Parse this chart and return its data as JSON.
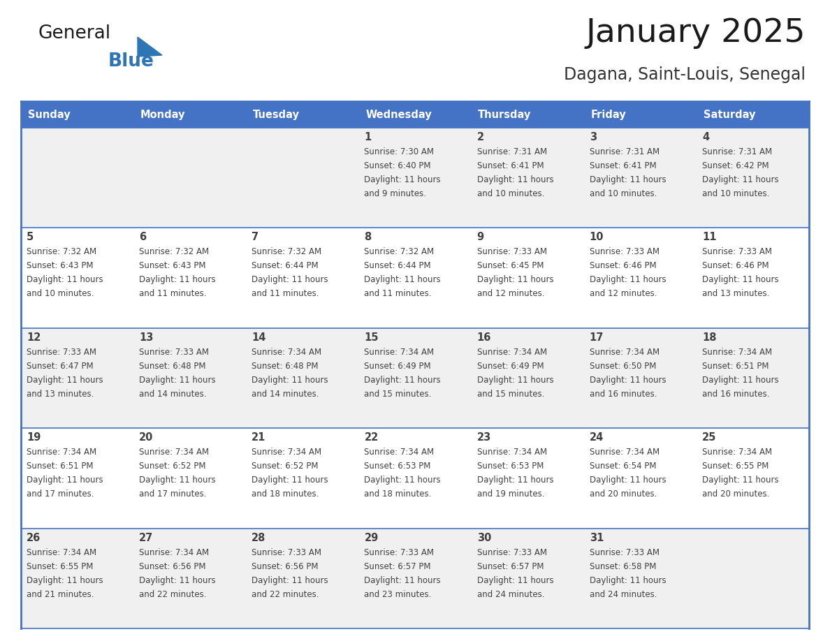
{
  "title": "January 2025",
  "subtitle": "Dagana, Saint-Louis, Senegal",
  "days_of_week": [
    "Sunday",
    "Monday",
    "Tuesday",
    "Wednesday",
    "Thursday",
    "Friday",
    "Saturday"
  ],
  "header_bg": "#4472C4",
  "header_text": "#FFFFFF",
  "cell_bg_odd": "#F0F0F0",
  "cell_bg_even": "#FFFFFF",
  "border_color": "#4472C4",
  "text_color": "#404040",
  "title_color": "#1a1a1a",
  "subtitle_color": "#333333",
  "logo_general_color": "#1a1a1a",
  "logo_blue_color": "#2E75B6",
  "weeks": [
    [
      {
        "day": null,
        "sunrise": null,
        "sunset": null,
        "daylight": null
      },
      {
        "day": null,
        "sunrise": null,
        "sunset": null,
        "daylight": null
      },
      {
        "day": null,
        "sunrise": null,
        "sunset": null,
        "daylight": null
      },
      {
        "day": 1,
        "sunrise": "7:30 AM",
        "sunset": "6:40 PM",
        "daylight": "11 hours and 9 minutes."
      },
      {
        "day": 2,
        "sunrise": "7:31 AM",
        "sunset": "6:41 PM",
        "daylight": "11 hours and 10 minutes."
      },
      {
        "day": 3,
        "sunrise": "7:31 AM",
        "sunset": "6:41 PM",
        "daylight": "11 hours and 10 minutes."
      },
      {
        "day": 4,
        "sunrise": "7:31 AM",
        "sunset": "6:42 PM",
        "daylight": "11 hours and 10 minutes."
      }
    ],
    [
      {
        "day": 5,
        "sunrise": "7:32 AM",
        "sunset": "6:43 PM",
        "daylight": "11 hours and 10 minutes."
      },
      {
        "day": 6,
        "sunrise": "7:32 AM",
        "sunset": "6:43 PM",
        "daylight": "11 hours and 11 minutes."
      },
      {
        "day": 7,
        "sunrise": "7:32 AM",
        "sunset": "6:44 PM",
        "daylight": "11 hours and 11 minutes."
      },
      {
        "day": 8,
        "sunrise": "7:32 AM",
        "sunset": "6:44 PM",
        "daylight": "11 hours and 11 minutes."
      },
      {
        "day": 9,
        "sunrise": "7:33 AM",
        "sunset": "6:45 PM",
        "daylight": "11 hours and 12 minutes."
      },
      {
        "day": 10,
        "sunrise": "7:33 AM",
        "sunset": "6:46 PM",
        "daylight": "11 hours and 12 minutes."
      },
      {
        "day": 11,
        "sunrise": "7:33 AM",
        "sunset": "6:46 PM",
        "daylight": "11 hours and 13 minutes."
      }
    ],
    [
      {
        "day": 12,
        "sunrise": "7:33 AM",
        "sunset": "6:47 PM",
        "daylight": "11 hours and 13 minutes."
      },
      {
        "day": 13,
        "sunrise": "7:33 AM",
        "sunset": "6:48 PM",
        "daylight": "11 hours and 14 minutes."
      },
      {
        "day": 14,
        "sunrise": "7:34 AM",
        "sunset": "6:48 PM",
        "daylight": "11 hours and 14 minutes."
      },
      {
        "day": 15,
        "sunrise": "7:34 AM",
        "sunset": "6:49 PM",
        "daylight": "11 hours and 15 minutes."
      },
      {
        "day": 16,
        "sunrise": "7:34 AM",
        "sunset": "6:49 PM",
        "daylight": "11 hours and 15 minutes."
      },
      {
        "day": 17,
        "sunrise": "7:34 AM",
        "sunset": "6:50 PM",
        "daylight": "11 hours and 16 minutes."
      },
      {
        "day": 18,
        "sunrise": "7:34 AM",
        "sunset": "6:51 PM",
        "daylight": "11 hours and 16 minutes."
      }
    ],
    [
      {
        "day": 19,
        "sunrise": "7:34 AM",
        "sunset": "6:51 PM",
        "daylight": "11 hours and 17 minutes."
      },
      {
        "day": 20,
        "sunrise": "7:34 AM",
        "sunset": "6:52 PM",
        "daylight": "11 hours and 17 minutes."
      },
      {
        "day": 21,
        "sunrise": "7:34 AM",
        "sunset": "6:52 PM",
        "daylight": "11 hours and 18 minutes."
      },
      {
        "day": 22,
        "sunrise": "7:34 AM",
        "sunset": "6:53 PM",
        "daylight": "11 hours and 18 minutes."
      },
      {
        "day": 23,
        "sunrise": "7:34 AM",
        "sunset": "6:53 PM",
        "daylight": "11 hours and 19 minutes."
      },
      {
        "day": 24,
        "sunrise": "7:34 AM",
        "sunset": "6:54 PM",
        "daylight": "11 hours and 20 minutes."
      },
      {
        "day": 25,
        "sunrise": "7:34 AM",
        "sunset": "6:55 PM",
        "daylight": "11 hours and 20 minutes."
      }
    ],
    [
      {
        "day": 26,
        "sunrise": "7:34 AM",
        "sunset": "6:55 PM",
        "daylight": "11 hours and 21 minutes."
      },
      {
        "day": 27,
        "sunrise": "7:34 AM",
        "sunset": "6:56 PM",
        "daylight": "11 hours and 22 minutes."
      },
      {
        "day": 28,
        "sunrise": "7:33 AM",
        "sunset": "6:56 PM",
        "daylight": "11 hours and 22 minutes."
      },
      {
        "day": 29,
        "sunrise": "7:33 AM",
        "sunset": "6:57 PM",
        "daylight": "11 hours and 23 minutes."
      },
      {
        "day": 30,
        "sunrise": "7:33 AM",
        "sunset": "6:57 PM",
        "daylight": "11 hours and 24 minutes."
      },
      {
        "day": 31,
        "sunrise": "7:33 AM",
        "sunset": "6:58 PM",
        "daylight": "11 hours and 24 minutes."
      },
      {
        "day": null,
        "sunrise": null,
        "sunset": null,
        "daylight": null
      }
    ]
  ]
}
